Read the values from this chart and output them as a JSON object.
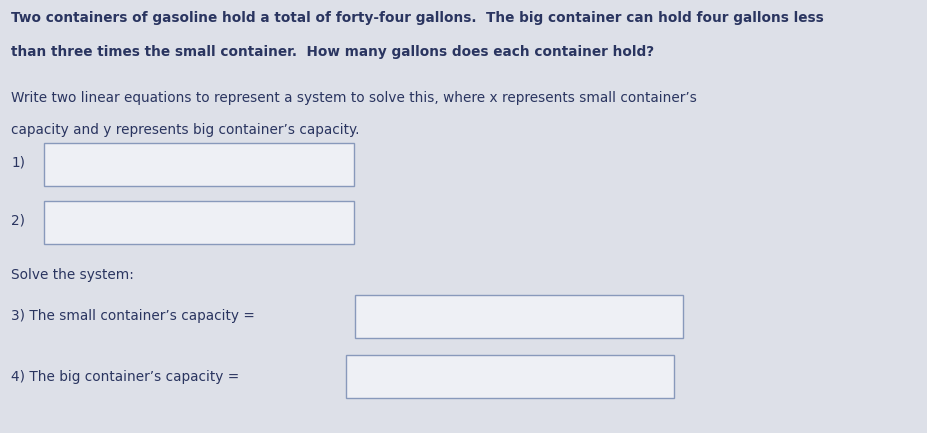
{
  "background_color": "#dde0e8",
  "title_line1": "Two containers of gasoline hold a total of forty-four gallons.  The big container can hold four gallons less",
  "title_line2": "than three times the small container.  How many gallons does each container hold?",
  "instruction_line1": "Write two linear equations to represent a system to solve this, where x represents small container’s",
  "instruction_line2": "capacity and y represents big container’s capacity.",
  "label1": "1)",
  "label2": "2)",
  "solve_label": "Solve the system:",
  "label3": "3) The small container’s capacity =",
  "label4": "4) The big container’s capacity =",
  "text_color": "#2a3560",
  "box_edge_color": "#8899bb",
  "box_face_color": "#eef0f5",
  "font_size_title": 9.8,
  "font_size_body": 9.8,
  "font_size_labels": 9.8
}
